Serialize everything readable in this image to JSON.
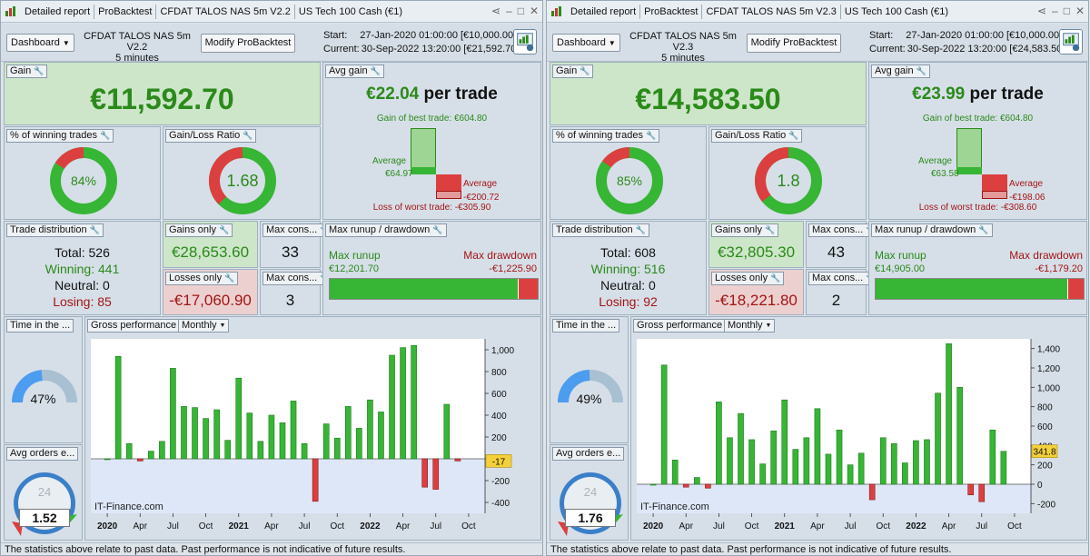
{
  "panels": [
    {
      "tabs": [
        "Detailed report",
        "ProBacktest",
        "CFDAT TALOS NAS 5m V2.2",
        "US Tech 100 Cash (€1)"
      ],
      "dashboard_label": "Dashboard",
      "strategy_name": "CFDAT TALOS NAS 5m V2.2",
      "timeframe": "5 minutes",
      "modify_label": "Modify ProBacktest",
      "start_label": "Start:",
      "start_value": "27-Jan-2020 01:00:00 [€10,000.00]",
      "current_label": "Current:",
      "current_value": "30-Sep-2022 13:20:00 [€21,592.70]",
      "gain_label": "Gain",
      "gain_value": "€11,592.70",
      "avg_gain_label": "Avg gain",
      "avg_gain_value": "€22.04",
      "per_trade": "per trade",
      "best_trade": "Gain of best trade: €604.80",
      "avg_word": "Average",
      "avg_win": "€64.97",
      "avg_loss": "-€200.72",
      "worst_trade": "Loss of worst trade: -€305.90",
      "winning_label": "% of winning trades",
      "winning_pct": "84%",
      "winning_fraction": 0.84,
      "ratio_label": "Gain/Loss Ratio",
      "ratio_value": "1.68",
      "ratio_fraction": 0.627,
      "dist_label": "Trade distribution",
      "total": "Total: 526",
      "winning": "Winning: 441",
      "neutral": "Neutral: 0",
      "losing": "Losing: 85",
      "gains_only_label": "Gains only",
      "gains_only": "€28,653.60",
      "losses_only_label": "Losses only",
      "losses_only": "-€17,060.90",
      "max_cons_label": "Max cons...",
      "max_cons_win": "33",
      "max_cons_loss": "3",
      "runup_label": "Max runup / drawdown",
      "max_runup_label": "Max runup",
      "max_runup": "€12,201.70",
      "max_dd_label": "Max drawdown",
      "max_dd": "-€1,225.90",
      "runup_fraction": 0.909,
      "time_label": "Time in the ...",
      "time_pct": "47%",
      "time_fraction": 0.47,
      "gross_label": "Gross performance",
      "period": "Monthly",
      "avg_orders_label": "Avg orders e...",
      "clock_number": "24",
      "avg_orders": "1.52",
      "watermark": "IT-Finance.com",
      "footer": "The statistics above relate to past data. Past performance is not indicative of future results.",
      "chart_data": {
        "type": "bar",
        "categories": [
          "2020-01",
          "2020-02",
          "2020-03",
          "2020-04",
          "2020-05",
          "2020-06",
          "2020-07",
          "2020-08",
          "2020-09",
          "2020-10",
          "2020-11",
          "2020-12",
          "2021-01",
          "2021-02",
          "2021-03",
          "2021-04",
          "2021-05",
          "2021-06",
          "2021-07",
          "2021-08",
          "2021-09",
          "2021-10",
          "2021-11",
          "2021-12",
          "2022-01",
          "2022-02",
          "2022-03",
          "2022-04",
          "2022-05",
          "2022-06",
          "2022-07",
          "2022-08",
          "2022-09"
        ],
        "values": [
          0,
          940,
          140,
          -20,
          70,
          160,
          830,
          480,
          470,
          370,
          450,
          170,
          740,
          420,
          160,
          400,
          330,
          530,
          140,
          -390,
          320,
          190,
          480,
          280,
          540,
          430,
          950,
          1020,
          1040,
          -260,
          -280,
          500,
          -20
        ],
        "tick_labels": [
          "2020",
          "Apr",
          "Jul",
          "Oct",
          "2021",
          "Apr",
          "Jul",
          "Oct",
          "2022",
          "Apr",
          "Jul",
          "Oct"
        ],
        "y_ticks": [
          -400,
          -200,
          0,
          200,
          400,
          600,
          800,
          "1,000"
        ],
        "ylim": [
          -500,
          1100
        ],
        "current_value": "-17"
      }
    },
    {
      "tabs": [
        "Detailed report",
        "ProBacktest",
        "CFDAT TALOS NAS 5m V2.3",
        "US Tech 100 Cash (€1)"
      ],
      "dashboard_label": "Dashboard",
      "strategy_name": "CFDAT TALOS NAS 5m V2.3",
      "timeframe": "5 minutes",
      "modify_label": "Modify ProBacktest",
      "start_label": "Start:",
      "start_value": "27-Jan-2020 01:00:00 [€10,000.00]",
      "current_label": "Current:",
      "current_value": "30-Sep-2022 13:20:00 [€24,583.50]",
      "gain_label": "Gain",
      "gain_value": "€14,583.50",
      "avg_gain_label": "Avg gain",
      "avg_gain_value": "€23.99",
      "per_trade": "per trade",
      "best_trade": "Gain of best trade: €604.80",
      "avg_word": "Average",
      "avg_win": "€63.58",
      "avg_loss": "-€198.06",
      "worst_trade": "Loss of worst trade: -€308.60",
      "winning_label": "% of winning trades",
      "winning_pct": "85%",
      "winning_fraction": 0.85,
      "ratio_label": "Gain/Loss Ratio",
      "ratio_value": "1.8",
      "ratio_fraction": 0.643,
      "dist_label": "Trade distribution",
      "total": "Total: 608",
      "winning": "Winning: 516",
      "neutral": "Neutral: 0",
      "losing": "Losing: 92",
      "gains_only_label": "Gains only",
      "gains_only": "€32,805.30",
      "losses_only_label": "Losses only",
      "losses_only": "-€18,221.80",
      "max_cons_label": "Max cons...",
      "max_cons_win": "43",
      "max_cons_loss": "2",
      "runup_label": "Max runup / drawdown",
      "max_runup_label": "Max runup",
      "max_runup": "€14,905.00",
      "max_dd_label": "Max drawdown",
      "max_dd": "-€1,179.20",
      "runup_fraction": 0.927,
      "time_label": "Time in the ...",
      "time_pct": "49%",
      "time_fraction": 0.49,
      "gross_label": "Gross performance",
      "period": "Monthly",
      "avg_orders_label": "Avg orders e...",
      "clock_number": "24",
      "avg_orders": "1.76",
      "watermark": "IT-Finance.com",
      "footer": "The statistics above relate to past data. Past performance is not indicative of future results.",
      "chart_data": {
        "type": "bar",
        "categories": [
          "2020-01",
          "2020-02",
          "2020-03",
          "2020-04",
          "2020-05",
          "2020-06",
          "2020-07",
          "2020-08",
          "2020-09",
          "2020-10",
          "2020-11",
          "2020-12",
          "2021-01",
          "2021-02",
          "2021-03",
          "2021-04",
          "2021-05",
          "2021-06",
          "2021-07",
          "2021-08",
          "2021-09",
          "2021-10",
          "2021-11",
          "2021-12",
          "2022-01",
          "2022-02",
          "2022-03",
          "2022-04",
          "2022-05",
          "2022-06",
          "2022-07",
          "2022-08",
          "2022-09"
        ],
        "values": [
          0,
          1230,
          250,
          -30,
          70,
          -40,
          850,
          480,
          730,
          460,
          210,
          550,
          870,
          360,
          480,
          780,
          310,
          560,
          200,
          320,
          -160,
          480,
          420,
          220,
          450,
          460,
          940,
          1450,
          1000,
          -110,
          -180,
          560,
          340
        ],
        "tick_labels": [
          "2020",
          "Apr",
          "Jul",
          "Oct",
          "2021",
          "Apr",
          "Jul",
          "Oct",
          "2022",
          "Apr",
          "Jul",
          "Oct"
        ],
        "y_ticks": [
          -200,
          0,
          200,
          400,
          600,
          800,
          "1,000",
          "1,200",
          "1,400"
        ],
        "ylim": [
          -300,
          1500
        ],
        "current_value": "341.8"
      }
    }
  ]
}
